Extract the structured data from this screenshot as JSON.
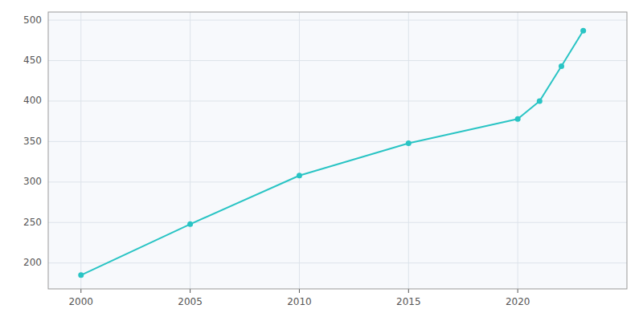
{
  "chart_data": {
    "type": "line",
    "x": [
      2000,
      2005,
      2010,
      2015,
      2020,
      2021,
      2022,
      2023
    ],
    "values": [
      185,
      248,
      308,
      348,
      378,
      400,
      443,
      487
    ],
    "color": "#29C4C4",
    "marker": "circle",
    "xlim": [
      1998.5,
      2025
    ],
    "ylim": [
      168,
      510
    ],
    "xticks": [
      2000,
      2005,
      2010,
      2015,
      2020
    ],
    "yticks": [
      200,
      250,
      300,
      350,
      400,
      450,
      500
    ],
    "grid": true
  }
}
